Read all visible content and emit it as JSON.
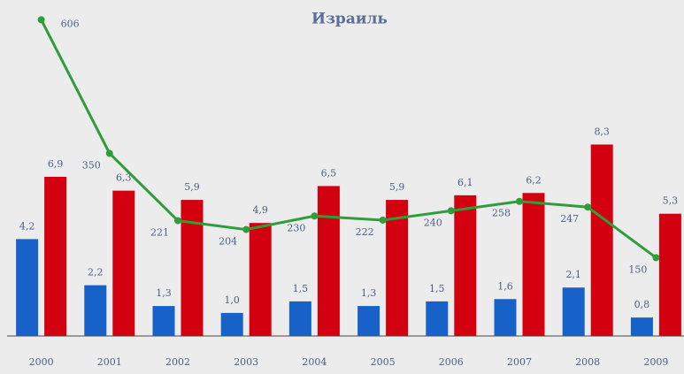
{
  "chart_data": {
    "type": "bar",
    "title": "Израиль",
    "categories": [
      "2000",
      "2001",
      "2002",
      "2003",
      "2004",
      "2005",
      "2006",
      "2007",
      "2008",
      "2009"
    ],
    "series": [
      {
        "type": "bar",
        "color": "#1662c9",
        "values": [
          4.2,
          2.2,
          1.3,
          1.0,
          1.5,
          1.3,
          1.5,
          1.6,
          2.1,
          0.8
        ],
        "value_labels": [
          "4,2",
          "2,2",
          "1,3",
          "1,0",
          "1,5",
          "1,3",
          "1,5",
          "1,6",
          "2,1",
          "0,8"
        ]
      },
      {
        "type": "bar",
        "color": "#d30010",
        "values": [
          6.9,
          6.3,
          5.9,
          4.9,
          6.5,
          5.9,
          6.1,
          6.2,
          8.3,
          5.3
        ],
        "value_labels": [
          "6,9",
          "6,3",
          "5,9",
          "4,9",
          "6,5",
          "5,9",
          "6,1",
          "6,2",
          "8,3",
          "5,3"
        ]
      },
      {
        "type": "line",
        "axis": "y2",
        "color": "#2f9e3a",
        "values": [
          606,
          350,
          221,
          204,
          230,
          222,
          240,
          258,
          247,
          150
        ]
      }
    ],
    "ylim": [
      0,
      13.8
    ],
    "y2lim": [
      0,
      610
    ]
  }
}
